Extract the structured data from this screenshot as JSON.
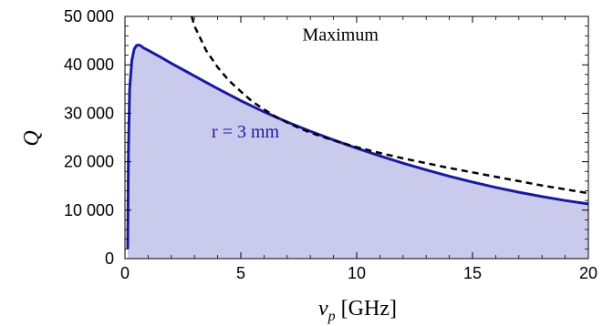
{
  "chart_data": {
    "type": "area",
    "xlabel": "[GHz]",
    "xlabel_symbol": "ν",
    "xlabel_subscript": "p",
    "ylabel": "Q",
    "xlim": [
      0,
      20
    ],
    "ylim": [
      0,
      50000
    ],
    "x_ticks": [
      0,
      5,
      10,
      15,
      20
    ],
    "x_tick_labels": [
      "0",
      "5",
      "10",
      "15",
      "20"
    ],
    "y_ticks": [
      0,
      10000,
      20000,
      30000,
      40000,
      50000
    ],
    "y_tick_labels": [
      "0",
      "10 000",
      "20 000",
      "30 000",
      "40 000",
      "50 000"
    ],
    "grid": false,
    "series": [
      {
        "name": "r = 3 mm",
        "style": "solid",
        "fill": true,
        "color": "#1a1aa0",
        "fill_color": "#cacbec",
        "x": [
          0.12,
          0.15,
          0.2,
          0.3,
          0.4,
          0.5,
          0.6,
          0.7,
          0.8,
          1,
          1.5,
          2,
          2.5,
          3,
          3.5,
          4,
          5,
          6,
          7,
          8,
          9,
          10,
          11,
          12,
          13,
          14,
          15,
          16,
          17,
          18,
          19,
          20
        ],
        "y": [
          2000,
          22000,
          35000,
          41000,
          43300,
          44000,
          44100,
          43900,
          43500,
          43000,
          41700,
          40300,
          39000,
          37700,
          36400,
          35100,
          32600,
          30300,
          28200,
          26300,
          24500,
          22800,
          21200,
          19700,
          18300,
          17000,
          15800,
          14700,
          13700,
          12800,
          12000,
          11300
        ]
      },
      {
        "name": "Maximum",
        "style": "dashed",
        "fill": false,
        "color": "#000000",
        "x": [
          2.88,
          3,
          3.5,
          4,
          4.5,
          5,
          5.5,
          6,
          6.5,
          7,
          7.5,
          8,
          8.5,
          9,
          10,
          11,
          12,
          13,
          14,
          15,
          16,
          17,
          18,
          19,
          20
        ],
        "y": [
          50000,
          48000,
          43000,
          39500,
          36700,
          34500,
          32400,
          30800,
          29300,
          28100,
          27000,
          26000,
          25200,
          24400,
          23000,
          21800,
          20700,
          19700,
          18700,
          17800,
          16900,
          16000,
          15100,
          14300,
          13500
        ]
      }
    ],
    "annotations": [
      {
        "text": "Maximum",
        "x": 9.3,
        "y": 45000,
        "color": "#000000"
      },
      {
        "text": "r = 3 mm",
        "x": 5.2,
        "y": 25000,
        "color": "#1a1aa0"
      }
    ]
  }
}
